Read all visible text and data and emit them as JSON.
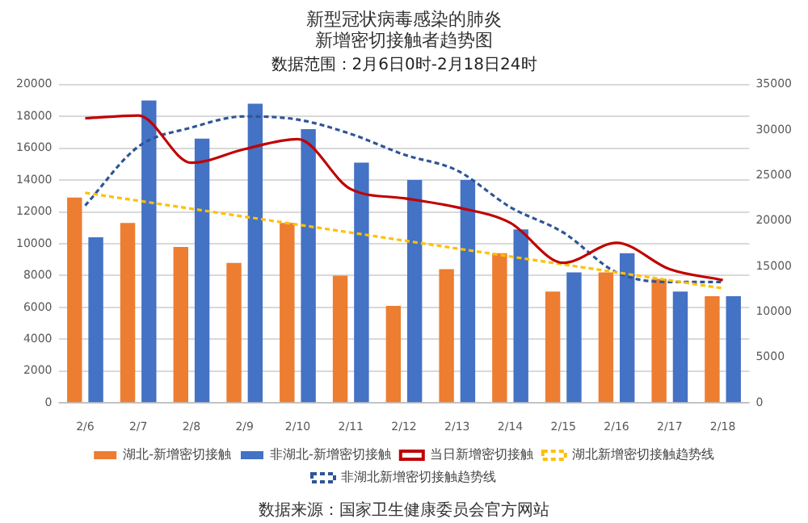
{
  "chart_data": {
    "type": "bar",
    "title": "新型冠状病毒感染的肺炎新增密切接触者趋势图",
    "subtitle": "数据范围：2月6日0时-2月18日24时",
    "categories": [
      "2/6",
      "2/7",
      "2/8",
      "2/9",
      "2/10",
      "2/11",
      "2/12",
      "2/13",
      "2/14",
      "2/15",
      "2/16",
      "2/17",
      "2/18"
    ],
    "series": [
      {
        "name": "湖北-新增密切接触",
        "color": "#ed7d31",
        "values": [
          12900,
          11300,
          9800,
          8800,
          11300,
          8000,
          6100,
          8400,
          9400,
          7000,
          8200,
          7800,
          6700
        ]
      },
      {
        "name": "非湖北-新增密切接触",
        "color": "#4472c4",
        "values": [
          10400,
          19000,
          16600,
          18800,
          17200,
          15100,
          14000,
          14000,
          10900,
          8200,
          9400,
          7000,
          6700
        ]
      },
      {
        "name": "当日新增密切接触",
        "type": "line",
        "axis": "y2",
        "color": "#c00000",
        "marker": "none",
        "line_style": "solid",
        "values": [
          31300,
          31600,
          26400,
          27900,
          29000,
          23500,
          22500,
          21500,
          19800,
          15400,
          17600,
          14700,
          13500
        ]
      },
      {
        "name": "湖北新增密切接触趋势线",
        "type": "line",
        "color": "#ffc000",
        "marker": "none",
        "line_style": "dashed",
        "values": [
          13200,
          12700,
          12200,
          11700,
          11200,
          10700,
          10200,
          9700,
          9200,
          8700,
          8200,
          7700,
          7200
        ]
      },
      {
        "name": "非湖北新增密切接触趋势线",
        "type": "line",
        "color": "#2f5597",
        "marker": "none",
        "line_style": "dashed",
        "values": [
          12400,
          16100,
          17300,
          18000,
          17800,
          16900,
          15600,
          14600,
          12300,
          10700,
          8200,
          7600,
          7600
        ]
      }
    ],
    "ylim": [
      0,
      20000
    ],
    "yticks": [
      0,
      2000,
      4000,
      6000,
      8000,
      10000,
      12000,
      14000,
      16000,
      18000,
      20000
    ],
    "y2lim": [
      0,
      35000
    ],
    "y2ticks": [
      0,
      5000,
      10000,
      15000,
      20000,
      25000,
      30000,
      35000
    ],
    "grid": "y",
    "legend": "bottom",
    "annotations": [
      "数据来源：国家卫生健康委员会官方网站"
    ]
  }
}
